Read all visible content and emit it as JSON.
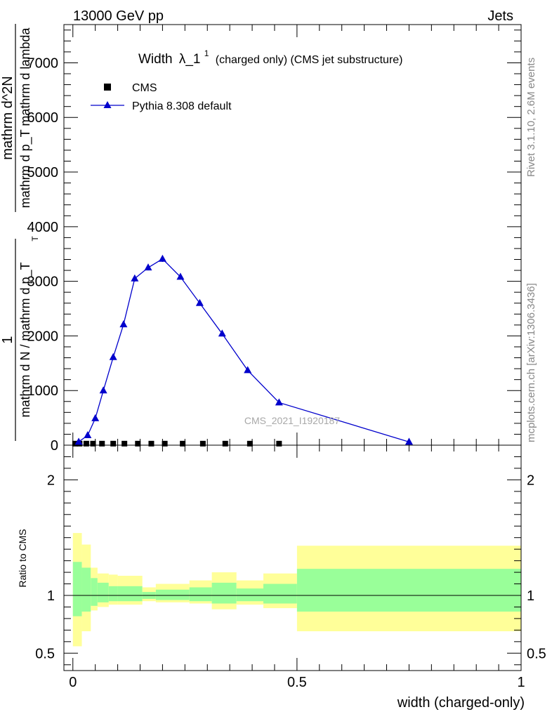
{
  "header": {
    "energy_label": "13000 GeV pp",
    "process_label": "Jets",
    "rivet_info": "Rivet 3.1.10,  2.6M events",
    "site_info": "mcplots.cern.ch [arXiv:1306.3436]",
    "watermark": "CMS_2021_I1920187"
  },
  "chart_data": [
    {
      "type": "line",
      "title": "Width λ_1^1 (charged only) (CMS jet substructure)",
      "title_main": "Width",
      "title_sym": "λ_1",
      "title_sup": "1",
      "title_rest": "(charged only) (CMS jet substructure)",
      "xlabel": "",
      "ylabel_numerator": "1",
      "ylabel_denominator": "mathrm d N / mathrm d p_T",
      "ylabel_sub": "T",
      "ylabel_right_numerator": "mathrm d^2N",
      "ylabel_right_denominator": "mathrm d p_T mathrm d lambda",
      "xlim": [
        -0.02,
        1.0
      ],
      "ylim": [
        0,
        7700
      ],
      "yticks": [
        0,
        1000,
        2000,
        3000,
        4000,
        5000,
        6000,
        7000
      ],
      "ytick_labels": [
        "0",
        "1000",
        "2000",
        "3000",
        "4000",
        "5000",
        "6000",
        "7000"
      ],
      "grid": false,
      "legend_position": "top-left",
      "series": [
        {
          "name": "CMS",
          "marker": "square",
          "color": "#000000",
          "x": [
            0.005,
            0.015,
            0.03,
            0.045,
            0.065,
            0.09,
            0.115,
            0.145,
            0.175,
            0.205,
            0.245,
            0.29,
            0.34,
            0.395,
            0.46
          ],
          "y": [
            15,
            15,
            15,
            15,
            15,
            15,
            15,
            15,
            15,
            15,
            15,
            15,
            15,
            15,
            15
          ]
        },
        {
          "name": "Pythia 8.308 default",
          "marker": "triangle",
          "color": "#0000cc",
          "x": [
            0.013,
            0.033,
            0.05,
            0.068,
            0.09,
            0.113,
            0.138,
            0.168,
            0.2,
            0.24,
            0.283,
            0.333,
            0.39,
            0.46,
            0.75
          ],
          "y": [
            60,
            180,
            490,
            1000,
            1610,
            2210,
            3050,
            3250,
            3410,
            3080,
            2600,
            2040,
            1370,
            780,
            60
          ],
          "yerr": [
            10,
            15,
            25,
            30,
            40,
            45,
            55,
            50,
            55,
            45,
            40,
            35,
            30,
            20,
            10
          ]
        }
      ]
    },
    {
      "type": "area",
      "xlabel": "width (charged-only)",
      "ylabel": "Ratio to CMS",
      "xlim": [
        -0.02,
        1.0
      ],
      "ylim": [
        0.35,
        2.3
      ],
      "yticks": [
        0.5,
        1,
        2
      ],
      "ytick_labels": [
        "0.5",
        "1",
        "2"
      ],
      "xticks": [
        0,
        0.5,
        1
      ],
      "xtick_labels": [
        "0",
        "0.5",
        "1"
      ],
      "reference_line": 1,
      "band_colors": {
        "inner": "#99ff99",
        "outer": "#ffff99"
      },
      "bins": [
        {
          "x0": 0.0,
          "x1": 0.02,
          "inner": [
            0.82,
            1.29
          ],
          "outer": [
            0.56,
            1.54
          ]
        },
        {
          "x0": 0.02,
          "x1": 0.04,
          "inner": [
            0.86,
            1.24
          ],
          "outer": [
            0.69,
            1.44
          ]
        },
        {
          "x0": 0.04,
          "x1": 0.055,
          "inner": [
            0.91,
            1.15
          ],
          "outer": [
            0.87,
            1.24
          ]
        },
        {
          "x0": 0.055,
          "x1": 0.08,
          "inner": [
            0.94,
            1.11
          ],
          "outer": [
            0.9,
            1.19
          ]
        },
        {
          "x0": 0.08,
          "x1": 0.1,
          "inner": [
            0.95,
            1.08
          ],
          "outer": [
            0.92,
            1.18
          ]
        },
        {
          "x0": 0.1,
          "x1": 0.155,
          "inner": [
            0.95,
            1.08
          ],
          "outer": [
            0.92,
            1.17
          ]
        },
        {
          "x0": 0.155,
          "x1": 0.185,
          "inner": [
            0.97,
            1.03
          ],
          "outer": [
            0.95,
            1.07
          ]
        },
        {
          "x0": 0.185,
          "x1": 0.26,
          "inner": [
            0.96,
            1.05
          ],
          "outer": [
            0.94,
            1.1
          ]
        },
        {
          "x0": 0.26,
          "x1": 0.31,
          "inner": [
            0.95,
            1.07
          ],
          "outer": [
            0.93,
            1.13
          ]
        },
        {
          "x0": 0.31,
          "x1": 0.365,
          "inner": [
            0.93,
            1.11
          ],
          "outer": [
            0.88,
            1.2
          ]
        },
        {
          "x0": 0.365,
          "x1": 0.425,
          "inner": [
            0.95,
            1.06
          ],
          "outer": [
            0.92,
            1.13
          ]
        },
        {
          "x0": 0.425,
          "x1": 0.5,
          "inner": [
            0.93,
            1.1
          ],
          "outer": [
            0.89,
            1.19
          ]
        },
        {
          "x0": 0.5,
          "x1": 1.0,
          "inner": [
            0.86,
            1.23
          ],
          "outer": [
            0.69,
            1.43
          ]
        }
      ]
    }
  ]
}
